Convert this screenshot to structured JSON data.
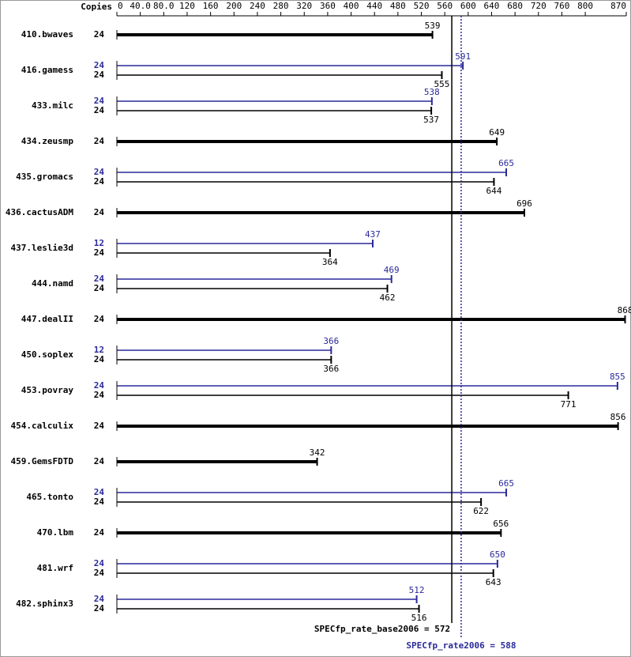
{
  "chart_data": {
    "type": "bar",
    "copies_label": "Copies",
    "categories": [
      "410.bwaves",
      "416.gamess",
      "433.milc",
      "434.zeusmp",
      "435.gromacs",
      "436.cactusADM",
      "437.leslie3d",
      "444.namd",
      "447.dealII",
      "450.soplex",
      "453.povray",
      "454.calculix",
      "459.GemsFDTD",
      "465.tonto",
      "470.lbm",
      "481.wrf",
      "482.sphinx3"
    ],
    "base_copies": [
      24,
      24,
      24,
      24,
      24,
      24,
      24,
      24,
      24,
      24,
      24,
      24,
      24,
      24,
      24,
      24,
      24
    ],
    "base_values": [
      539,
      555,
      537,
      649,
      644,
      696,
      364,
      462,
      868,
      366,
      771,
      856,
      342,
      622,
      656,
      643,
      516
    ],
    "peak_copies": [
      null,
      24,
      24,
      null,
      24,
      null,
      12,
      24,
      null,
      12,
      24,
      null,
      null,
      24,
      null,
      24,
      24
    ],
    "peak_values": [
      null,
      591,
      538,
      null,
      665,
      null,
      437,
      469,
      null,
      366,
      855,
      null,
      null,
      665,
      null,
      650,
      512
    ],
    "base_color": "#000000",
    "peak_color": "#2a2a9a",
    "xlim": [
      0,
      870
    ],
    "xticks": [
      0,
      {
        "value": 40,
        "label": "40.0"
      },
      {
        "value": 80,
        "label": "80.0"
      },
      120,
      160,
      200,
      240,
      280,
      320,
      360,
      400,
      440,
      480,
      520,
      560,
      600,
      640,
      680,
      720,
      760,
      800,
      870
    ],
    "base_summary": {
      "label": "SPECfp_rate_base2006 = 572",
      "value": 572
    },
    "peak_summary": {
      "label": "SPECfp_rate2006 = 588",
      "value": 588
    }
  }
}
